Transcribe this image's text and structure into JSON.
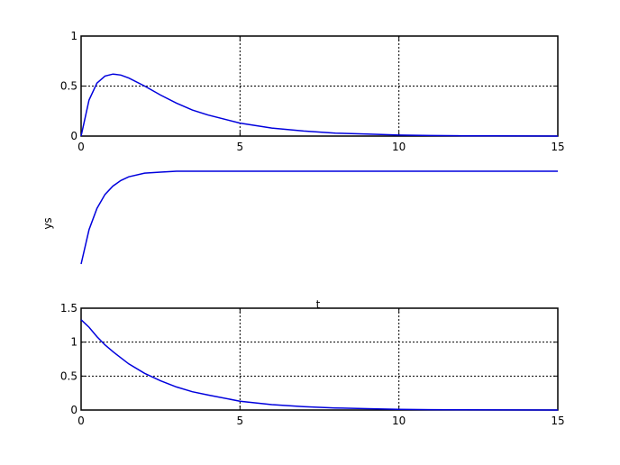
{
  "chart_data": [
    {
      "type": "line",
      "title": "",
      "xlabel": "",
      "ylabel": "",
      "xlim": [
        0,
        15
      ],
      "ylim": [
        0,
        1
      ],
      "xticks": [
        "0",
        "5",
        "10",
        "15"
      ],
      "yticks": [
        "0",
        "0.5",
        "1"
      ],
      "grid": true,
      "axes_box": true,
      "series": [
        {
          "color": "#0000dd",
          "x": [
            0,
            0.25,
            0.5,
            0.75,
            1,
            1.25,
            1.5,
            2,
            2.5,
            3,
            3.5,
            4,
            5,
            6,
            7,
            8,
            9,
            10,
            11,
            12,
            13,
            15
          ],
          "y": [
            0,
            0.36,
            0.53,
            0.6,
            0.62,
            0.61,
            0.58,
            0.5,
            0.41,
            0.33,
            0.26,
            0.21,
            0.13,
            0.08,
            0.05,
            0.03,
            0.02,
            0.01,
            0.005,
            0.003,
            0.002,
            0
          ]
        }
      ]
    },
    {
      "type": "line",
      "title": "",
      "xlabel": "t",
      "ylabel": "ys",
      "xlim": [
        0,
        15
      ],
      "ylim": [
        0,
        1
      ],
      "xticks": [],
      "yticks": [],
      "grid": false,
      "axes_box": false,
      "series": [
        {
          "color": "#0000dd",
          "x": [
            0,
            0.25,
            0.5,
            0.75,
            1,
            1.25,
            1.5,
            2,
            2.5,
            3,
            4,
            5,
            7,
            10,
            15
          ],
          "y": [
            0,
            0.37,
            0.6,
            0.75,
            0.84,
            0.9,
            0.94,
            0.98,
            0.99,
            1.0,
            1.0,
            1.0,
            1.0,
            1.0,
            1.0
          ]
        }
      ]
    },
    {
      "type": "line",
      "title": "",
      "xlabel": "",
      "ylabel": "",
      "xlim": [
        0,
        15
      ],
      "ylim": [
        0,
        1.5
      ],
      "xticks": [
        "0",
        "5",
        "10",
        "15"
      ],
      "yticks": [
        "0",
        "0.5",
        "1",
        "1.5"
      ],
      "grid": true,
      "axes_box": true,
      "series": [
        {
          "color": "#0000dd",
          "x": [
            0,
            0.25,
            0.5,
            0.75,
            1,
            1.5,
            2,
            2.5,
            3,
            3.5,
            4,
            5,
            6,
            7,
            8,
            9,
            10,
            11,
            12,
            15
          ],
          "y": [
            1.33,
            1.22,
            1.08,
            0.96,
            0.86,
            0.68,
            0.54,
            0.43,
            0.34,
            0.27,
            0.22,
            0.13,
            0.08,
            0.05,
            0.03,
            0.02,
            0.01,
            0.005,
            0.003,
            0
          ]
        }
      ]
    }
  ]
}
